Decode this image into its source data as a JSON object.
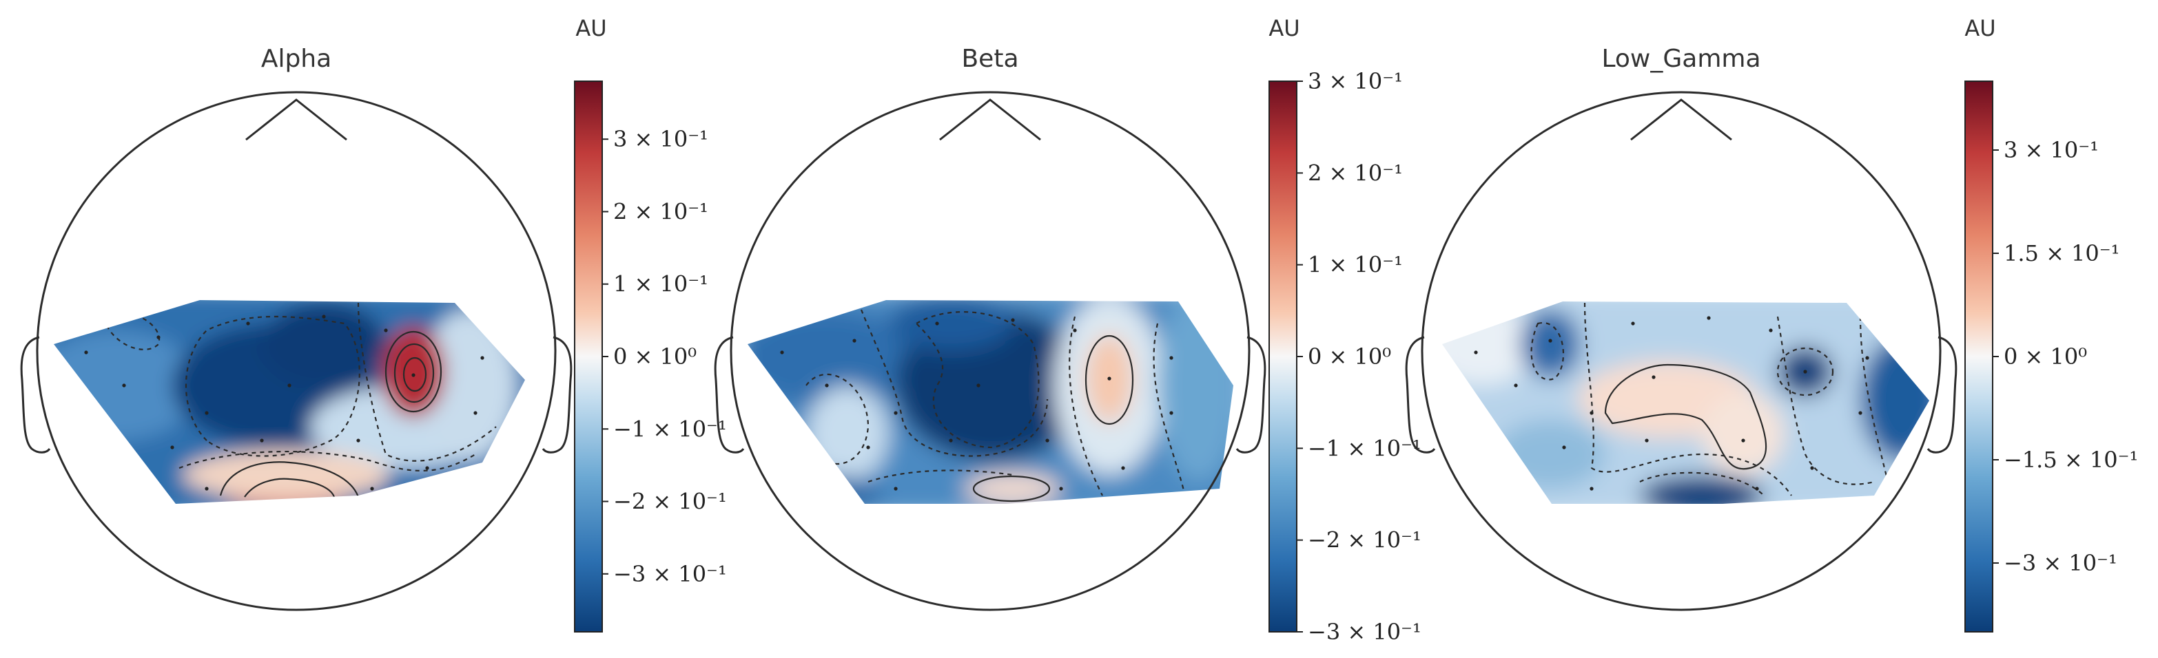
{
  "colormap": {
    "name": "RdBu_r",
    "stops": [
      "#0b3d78",
      "#2c70b1",
      "#6ba8d3",
      "#c2dcee",
      "#f7f7f7",
      "#f8c9b0",
      "#e6866a",
      "#c03b3a",
      "#6b0d1f"
    ]
  },
  "chart_data": [
    {
      "type": "heatmap",
      "subtype": "topomap",
      "title": "Alpha",
      "colorbar_label": "AU",
      "vlim": [
        -0.38,
        0.38
      ],
      "colorbar_ticks": [
        {
          "value": 0.3,
          "label": "3 × 10⁻¹"
        },
        {
          "value": 0.2,
          "label": "2 × 10⁻¹"
        },
        {
          "value": 0.1,
          "label": "1 × 10⁻¹"
        },
        {
          "value": 0.0,
          "label": "0 × 10⁰"
        },
        {
          "value": -0.1,
          "label": "−1 × 10⁻¹"
        },
        {
          "value": -0.2,
          "label": "−2 × 10⁻¹"
        },
        {
          "value": -0.3,
          "label": "−3 × 10⁻¹"
        }
      ]
    },
    {
      "type": "heatmap",
      "subtype": "topomap",
      "title": "Beta",
      "colorbar_label": "AU",
      "vlim": [
        -0.3,
        0.3
      ],
      "colorbar_ticks": [
        {
          "value": 0.3,
          "label": "3 × 10⁻¹"
        },
        {
          "value": 0.2,
          "label": "2 × 10⁻¹"
        },
        {
          "value": 0.1,
          "label": "1 × 10⁻¹"
        },
        {
          "value": 0.0,
          "label": "0 × 10⁰"
        },
        {
          "value": -0.1,
          "label": "−1 × 10⁻¹"
        },
        {
          "value": -0.2,
          "label": "−2 × 10⁻¹"
        },
        {
          "value": -0.3,
          "label": "−3 × 10⁻¹"
        }
      ]
    },
    {
      "type": "heatmap",
      "subtype": "topomap",
      "title": "Low_Gamma",
      "colorbar_label": "AU",
      "vlim": [
        -0.4,
        0.4
      ],
      "colorbar_ticks": [
        {
          "value": 0.3,
          "label": "3 × 10⁻¹"
        },
        {
          "value": 0.15,
          "label": "1.5 × 10⁻¹"
        },
        {
          "value": 0.0,
          "label": "0 × 10⁰"
        },
        {
          "value": -0.15,
          "label": "−1.5 × 10⁻¹"
        },
        {
          "value": -0.3,
          "label": "−3 × 10⁻¹"
        }
      ]
    }
  ]
}
